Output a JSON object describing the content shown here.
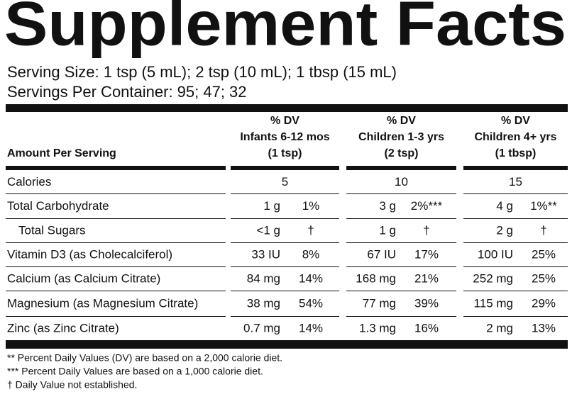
{
  "title": "Supplement Facts",
  "serving_size": "Serving Size: 1 tsp (5 mL); 2 tsp (10 mL); 1 tbsp (15 mL)",
  "servings_per_container": "Servings Per Container: 95; 47; 32",
  "table": {
    "header": {
      "amount": "Amount Per Serving",
      "columns": [
        {
          "dv": "% DV",
          "group": "Infants 6-12 mos",
          "serving": "(1 tsp)"
        },
        {
          "dv": "% DV",
          "group": "Children 1-3 yrs",
          "serving": "(2 tsp)"
        },
        {
          "dv": "% DV",
          "group": "Children 4+ yrs",
          "serving": "(1 tbsp)"
        }
      ]
    },
    "rows": [
      {
        "label": "Calories",
        "cells": [
          [
            "5"
          ],
          [
            "10"
          ],
          [
            "15"
          ]
        ]
      },
      {
        "label": "Total Carbohydrate",
        "cells": [
          [
            "1 g",
            "1%"
          ],
          [
            "3 g",
            "2%***"
          ],
          [
            "4 g",
            "1%**"
          ]
        ]
      },
      {
        "label": "Total Sugars",
        "cells": [
          [
            "<1 g",
            "†"
          ],
          [
            "1 g",
            "†"
          ],
          [
            "2 g",
            "†"
          ]
        ]
      },
      {
        "label": "Vitamin D3 (as Cholecalciferol)",
        "cells": [
          [
            "33 IU",
            "8%"
          ],
          [
            "67 IU",
            "17%"
          ],
          [
            "100 IU",
            "25%"
          ]
        ]
      },
      {
        "label": "Calcium (as Calcium Citrate)",
        "cells": [
          [
            "84 mg",
            "14%"
          ],
          [
            "168 mg",
            "21%"
          ],
          [
            "252 mg",
            "25%"
          ]
        ]
      },
      {
        "label": "Magnesium (as Magnesium Citrate)",
        "cells": [
          [
            "38 mg",
            "54%"
          ],
          [
            "77 mg",
            "39%"
          ],
          [
            "115 mg",
            "29%"
          ]
        ]
      },
      {
        "label": "Zinc (as Zinc Citrate)",
        "cells": [
          [
            "0.7 mg",
            "14%"
          ],
          [
            "1.3 mg",
            "16%"
          ],
          [
            "2 mg",
            "13%"
          ]
        ]
      }
    ]
  },
  "footnotes": [
    "** Percent Daily Values (DV) are based on a 2,000 calorie diet.",
    "*** Percent Daily Values are based on a 1,000 calorie diet.",
    "† Daily Value not established."
  ]
}
